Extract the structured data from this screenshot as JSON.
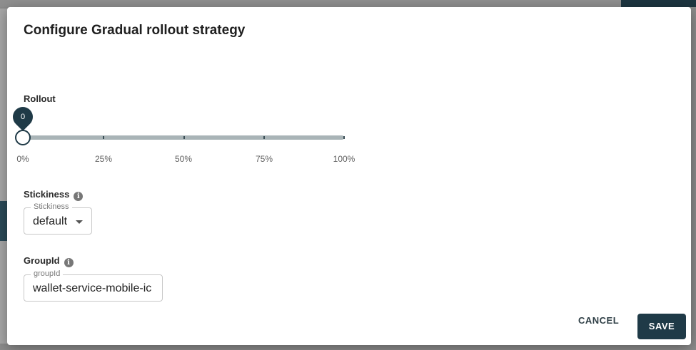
{
  "dialog": {
    "title": "Configure Gradual rollout strategy"
  },
  "rollout": {
    "label": "Rollout",
    "value": 0,
    "value_display": "0",
    "ticks": [
      "0%",
      "25%",
      "50%",
      "75%",
      "100%"
    ]
  },
  "stickiness": {
    "label": "Stickiness",
    "field_legend": "Stickiness",
    "selected": "default"
  },
  "group_id": {
    "label": "GroupId",
    "field_legend": "groupId",
    "value": "wallet-service-mobile-ic"
  },
  "actions": {
    "cancel": "CANCEL",
    "save": "SAVE"
  },
  "colors": {
    "primary": "#1f3a47",
    "track": "#a9b4b7"
  }
}
